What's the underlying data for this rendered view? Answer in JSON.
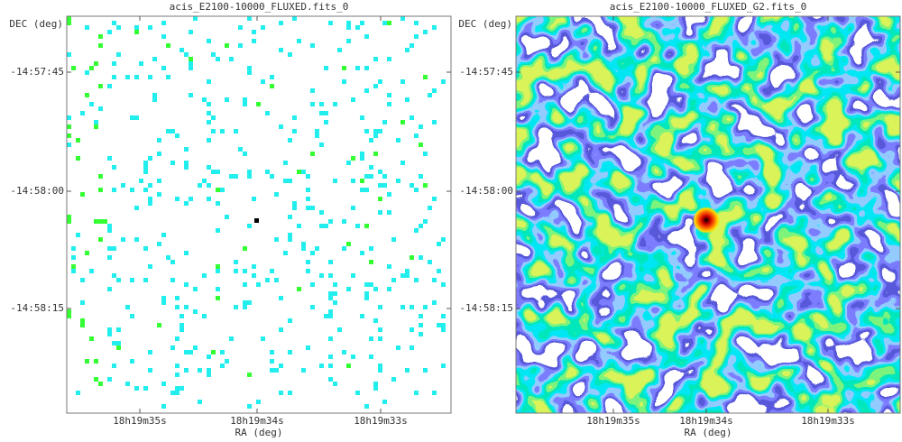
{
  "panels": [
    {
      "title": "acis_E2100-10000_FLUXED.fits_0",
      "y_axis": {
        "label": "DEC (deg)",
        "ticks": [
          "-14:57:45",
          "-14:58:00",
          "-14:58:15"
        ]
      },
      "x_axis": {
        "label": "RA (deg)",
        "ticks": [
          "18h19m35s",
          "18h19m34s",
          "18h19m33s"
        ]
      }
    },
    {
      "title": "acis_E2100-10000_FLUXED_G2.fits_0",
      "y_axis": {
        "label": "DEC (deg)",
        "ticks": [
          "-14:57:45",
          "-14:58:00",
          "-14:58:15"
        ]
      },
      "x_axis": {
        "label": "RA (deg)",
        "ticks": [
          "18h19m35s",
          "18h19m34s",
          "18h19m33s"
        ]
      }
    }
  ]
}
